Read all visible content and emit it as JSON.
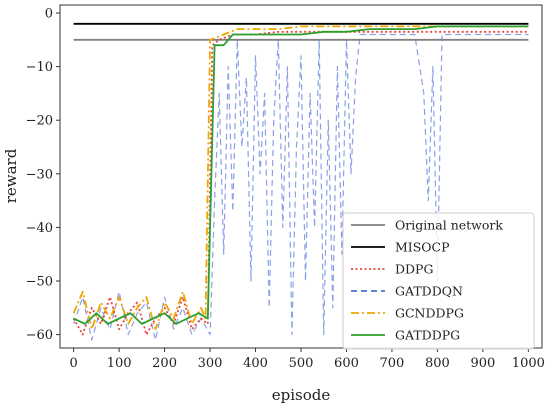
{
  "chart_data": {
    "type": "line",
    "title": "",
    "xlabel": "episode",
    "ylabel": "reward",
    "xlim": [
      -30,
      1030
    ],
    "ylim": [
      -62.5,
      1.5
    ],
    "xticks": [
      0,
      100,
      200,
      300,
      400,
      500,
      600,
      700,
      800,
      900,
      1000
    ],
    "yticks": [
      0,
      -10,
      -20,
      -30,
      -40,
      -50,
      -60
    ],
    "grid": false,
    "legend_position": "lower right",
    "series": [
      {
        "name": "Original network",
        "color": "#808080",
        "style": "solid",
        "x": [
          0,
          1000
        ],
        "y": [
          -5,
          -5
        ]
      },
      {
        "name": "MISOCP",
        "color": "#000000",
        "style": "solid",
        "x": [
          0,
          1000
        ],
        "y": [
          -2,
          -2
        ]
      },
      {
        "name": "DDPG",
        "color": "#e8453c",
        "style": "dotted",
        "x": [
          0,
          20,
          40,
          60,
          80,
          100,
          120,
          140,
          160,
          180,
          200,
          220,
          240,
          260,
          280,
          295,
          305,
          320,
          350,
          400,
          450,
          500,
          550,
          600,
          650,
          700,
          750,
          800,
          850,
          900,
          950,
          1000
        ],
        "y": [
          -57,
          -60,
          -55,
          -58,
          -53,
          -59,
          -56,
          -54,
          -60,
          -57,
          -55,
          -58,
          -53,
          -59,
          -57,
          -58,
          -6,
          -5,
          -4,
          -4,
          -3.5,
          -3.5,
          -3.5,
          -3.5,
          -3.5,
          -3.5,
          -3.5,
          -3.5,
          -3.5,
          -3.5,
          -3.5,
          -3.5
        ]
      },
      {
        "name": "GATDDQN",
        "color": "#4a6fd8",
        "style": "dashed",
        "x": [
          0,
          20,
          40,
          60,
          80,
          100,
          120,
          140,
          160,
          180,
          200,
          220,
          240,
          260,
          280,
          300,
          310,
          320,
          330,
          340,
          350,
          360,
          370,
          380,
          390,
          400,
          410,
          420,
          430,
          440,
          450,
          460,
          470,
          480,
          490,
          500,
          510,
          520,
          530,
          540,
          550,
          560,
          570,
          580,
          590,
          600,
          610,
          620,
          630,
          640,
          660,
          700,
          750,
          770,
          780,
          790,
          800,
          810,
          850,
          900,
          950,
          1000
        ],
        "y": [
          -58,
          -53,
          -61,
          -55,
          -59,
          -52,
          -60,
          -56,
          -54,
          -61,
          -53,
          -59,
          -55,
          -60,
          -57,
          -60,
          -35,
          -15,
          -45,
          -10,
          -37,
          -5,
          -25,
          -12,
          -50,
          -8,
          -30,
          -15,
          -55,
          -20,
          -5,
          -40,
          -10,
          -60,
          -25,
          -8,
          -50,
          -15,
          -40,
          -5,
          -60,
          -20,
          -55,
          -10,
          -45,
          -5,
          -30,
          -12,
          -4,
          -4,
          -4,
          -4,
          -4,
          -15,
          -35,
          -10,
          -50,
          -4,
          -4,
          -4,
          -4,
          -4
        ]
      },
      {
        "name": "GCNDDPG",
        "color": "#f0a500",
        "style": "dashdot",
        "x": [
          0,
          20,
          40,
          60,
          80,
          100,
          120,
          140,
          160,
          180,
          200,
          220,
          240,
          260,
          280,
          290,
          300,
          330,
          360,
          400,
          450,
          500,
          550,
          600,
          650,
          700,
          750,
          800,
          850,
          900,
          950,
          1000
        ],
        "y": [
          -56,
          -52,
          -59,
          -54,
          -57,
          -53,
          -58,
          -55,
          -53,
          -59,
          -54,
          -57,
          -52,
          -58,
          -55,
          -57,
          -5,
          -4,
          -3,
          -3,
          -3,
          -2.5,
          -2.5,
          -2.5,
          -2.5,
          -2.5,
          -2.5,
          -2.5,
          -2.5,
          -2.5,
          -2.5,
          -2.5
        ]
      },
      {
        "name": "GATDDPG",
        "color": "#2ca02c",
        "style": "solid",
        "x": [
          0,
          25,
          50,
          75,
          100,
          125,
          150,
          175,
          200,
          225,
          250,
          275,
          295,
          310,
          330,
          350,
          380,
          400,
          450,
          500,
          550,
          600,
          650,
          700,
          750,
          800,
          850,
          900,
          950,
          1000
        ],
        "y": [
          -57,
          -58,
          -56,
          -58,
          -57,
          -56,
          -58,
          -57,
          -56,
          -58,
          -57,
          -56,
          -57,
          -6,
          -6,
          -4,
          -4,
          -4,
          -4,
          -4,
          -3.5,
          -3.5,
          -3,
          -3,
          -3,
          -2.5,
          -2.5,
          -2.5,
          -2.5,
          -2.5
        ]
      }
    ]
  }
}
